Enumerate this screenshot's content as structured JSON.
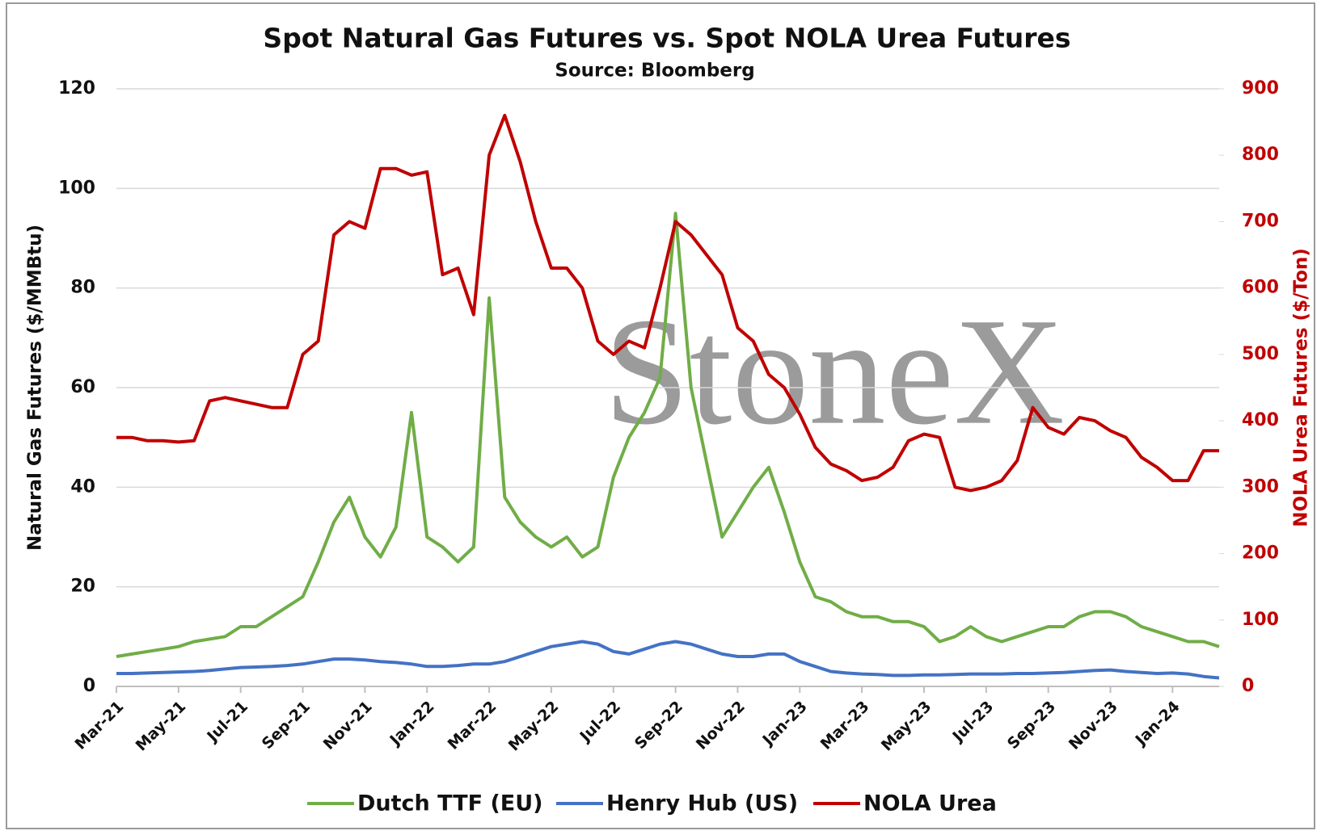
{
  "chart_data": {
    "type": "line",
    "title": "Spot Natural Gas Futures vs. Spot NOLA Urea Futures",
    "subtitle": "Source: Bloomberg",
    "watermark": "StoneX",
    "y_label": "Natural Gas Futures ($/MMBtu)",
    "y2_label": "NOLA Urea Futures ($/Ton)",
    "categories": [
      "Mar-21",
      null,
      null,
      null,
      "May-21",
      null,
      null,
      null,
      "Jul-21",
      null,
      null,
      null,
      "Sep-21",
      null,
      null,
      null,
      "Nov-21",
      null,
      null,
      null,
      "Jan-22",
      null,
      null,
      null,
      "Mar-22",
      null,
      null,
      null,
      "May-22",
      null,
      null,
      null,
      "Jul-22",
      null,
      null,
      null,
      "Sep-22",
      null,
      null,
      null,
      "Nov-22",
      null,
      null,
      null,
      "Jan-23",
      null,
      null,
      null,
      "Mar-23",
      null,
      null,
      null,
      "May-23",
      null,
      null,
      null,
      "Jul-23",
      null,
      null,
      null,
      "Sep-23",
      null,
      null,
      null,
      "Nov-23",
      null,
      null,
      null,
      "Jan-24",
      null,
      null,
      null
    ],
    "ylim": [
      0,
      120
    ],
    "yticks": [
      0,
      20,
      40,
      60,
      80,
      100,
      120
    ],
    "y2lim": [
      0,
      900
    ],
    "y2ticks": [
      0,
      100,
      200,
      300,
      400,
      500,
      600,
      700,
      800,
      900
    ],
    "grid": true,
    "legend": "bottom",
    "series": [
      {
        "name": "Dutch TTF (EU)",
        "color": "#70ad47",
        "values": [
          6,
          6.5,
          7,
          7.5,
          8,
          9,
          9.5,
          10,
          12,
          12,
          14,
          16,
          18,
          25,
          33,
          38,
          30,
          26,
          32,
          55,
          30,
          28,
          25,
          28,
          78,
          38,
          33,
          30,
          28,
          30,
          26,
          28,
          42,
          50,
          55,
          62,
          95,
          60,
          45,
          30,
          35,
          40,
          44,
          35,
          25,
          18,
          17,
          15,
          14,
          14,
          13,
          13,
          12,
          9,
          10,
          12,
          10,
          9,
          10,
          11,
          12,
          12,
          14,
          15,
          15,
          14,
          12,
          11,
          10,
          9,
          9,
          8
        ]
      },
      {
        "name": "Henry Hub (US)",
        "color": "#4472c4",
        "values": [
          2.6,
          2.6,
          2.7,
          2.8,
          2.9,
          3.0,
          3.2,
          3.5,
          3.8,
          3.9,
          4.0,
          4.2,
          4.5,
          5.0,
          5.5,
          5.5,
          5.3,
          5.0,
          4.8,
          4.5,
          4.0,
          4.0,
          4.2,
          4.5,
          4.5,
          5.0,
          6.0,
          7.0,
          8.0,
          8.5,
          9.0,
          8.5,
          7.0,
          6.5,
          7.5,
          8.5,
          9.0,
          8.5,
          7.5,
          6.5,
          6.0,
          6.0,
          6.5,
          6.5,
          5.0,
          4.0,
          3.0,
          2.7,
          2.5,
          2.4,
          2.2,
          2.2,
          2.3,
          2.3,
          2.4,
          2.5,
          2.5,
          2.5,
          2.6,
          2.6,
          2.7,
          2.8,
          3.0,
          3.2,
          3.3,
          3.0,
          2.8,
          2.6,
          2.7,
          2.5,
          2.0,
          1.7
        ]
      },
      {
        "name": "NOLA Urea",
        "color": "#c00000",
        "axis": "y2",
        "values": [
          375,
          375,
          370,
          370,
          368,
          370,
          430,
          435,
          430,
          425,
          420,
          420,
          500,
          520,
          680,
          700,
          690,
          780,
          780,
          770,
          775,
          620,
          630,
          560,
          800,
          860,
          790,
          700,
          630,
          630,
          600,
          520,
          500,
          520,
          510,
          600,
          700,
          680,
          650,
          620,
          540,
          520,
          470,
          450,
          410,
          360,
          335,
          325,
          310,
          315,
          330,
          370,
          380,
          375,
          300,
          295,
          300,
          310,
          340,
          420,
          390,
          380,
          405,
          400,
          385,
          375,
          345,
          330,
          310,
          310,
          355,
          355
        ]
      }
    ]
  }
}
